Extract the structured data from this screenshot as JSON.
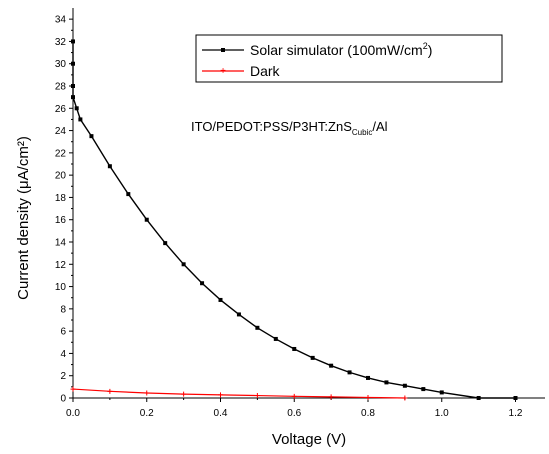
{
  "chart_data": {
    "type": "line",
    "xlabel": "Voltage (V)",
    "ylabel": "Current density (μA/cm²)",
    "xlim": [
      0.0,
      1.28
    ],
    "ylim": [
      0,
      35
    ],
    "xticks": [
      "0.0",
      "0.2",
      "0.4",
      "0.6",
      "0.8",
      "1.0",
      "1.2"
    ],
    "yticks": [
      "0",
      "2",
      "4",
      "6",
      "8",
      "10",
      "12",
      "14",
      "16",
      "18",
      "20",
      "22",
      "24",
      "26",
      "28",
      "30",
      "32",
      "34"
    ],
    "legend": {
      "placement": "top-right",
      "entries": [
        {
          "name": "Solar simulator (100mW/cm",
          "superscript": "2",
          "suffix": ")",
          "color": "#000000"
        },
        {
          "name": "Dark",
          "color": "#ff0000"
        }
      ]
    },
    "annotation": {
      "text": "ITO/PEDOT:PSS/P3HT:ZnS",
      "subscript": "Cubic",
      "suffix": "/Al"
    },
    "series": [
      {
        "name": "Solar simulator (100mW/cm2)",
        "color": "#000000",
        "marker": "square",
        "x": [
          0.0,
          0.0,
          0.0,
          0.0,
          0.01,
          0.02,
          0.05,
          0.1,
          0.15,
          0.2,
          0.25,
          0.3,
          0.35,
          0.4,
          0.45,
          0.5,
          0.55,
          0.6,
          0.65,
          0.7,
          0.75,
          0.8,
          0.85,
          0.9,
          0.95,
          1.0,
          1.1,
          1.2
        ],
        "y": [
          32.0,
          30.0,
          28.0,
          27.0,
          26.0,
          25.0,
          23.5,
          20.8,
          18.3,
          16.0,
          13.9,
          12.0,
          10.3,
          8.8,
          7.5,
          6.3,
          5.3,
          4.4,
          3.6,
          2.9,
          2.3,
          1.8,
          1.4,
          1.1,
          0.8,
          0.5,
          0.0,
          0.0
        ]
      },
      {
        "name": "Dark",
        "color": "#ff0000",
        "marker": "plus",
        "x": [
          0.0,
          0.1,
          0.2,
          0.3,
          0.4,
          0.5,
          0.6,
          0.7,
          0.8,
          0.9
        ],
        "y": [
          0.8,
          0.6,
          0.45,
          0.35,
          0.28,
          0.22,
          0.15,
          0.1,
          0.05,
          0.0
        ]
      }
    ]
  }
}
